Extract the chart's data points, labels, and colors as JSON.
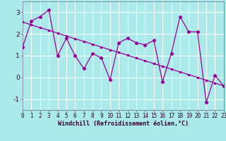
{
  "xlabel": "Windchill (Refroidissement éolien,°C)",
  "x": [
    0,
    1,
    2,
    3,
    4,
    5,
    6,
    7,
    8,
    9,
    10,
    11,
    12,
    13,
    14,
    15,
    16,
    17,
    18,
    19,
    20,
    21,
    22,
    23
  ],
  "y_data": [
    1.4,
    2.6,
    2.8,
    3.1,
    1.0,
    1.8,
    1.0,
    0.4,
    1.1,
    0.9,
    -0.1,
    1.6,
    1.8,
    1.6,
    1.5,
    1.7,
    -0.2,
    1.1,
    2.8,
    2.1,
    2.1,
    -1.15,
    0.1,
    -0.4
  ],
  "y_trend": [
    2.55,
    2.42,
    2.29,
    2.17,
    2.04,
    1.91,
    1.78,
    1.66,
    1.53,
    1.4,
    1.27,
    1.15,
    1.02,
    0.89,
    0.76,
    0.64,
    0.51,
    0.38,
    0.25,
    0.13,
    0.0,
    -0.13,
    -0.26,
    -0.39
  ],
  "line_color": "#990099",
  "bg_color": "#aaeaea",
  "grid_color": "#ccffff",
  "ylim": [
    -1.5,
    3.5
  ],
  "xlim": [
    0,
    23
  ],
  "yticks": [
    -1,
    0,
    1,
    2,
    3
  ],
  "xticks": [
    0,
    1,
    2,
    3,
    4,
    5,
    6,
    7,
    8,
    9,
    10,
    11,
    12,
    13,
    14,
    15,
    16,
    17,
    18,
    19,
    20,
    21,
    22,
    23
  ],
  "xlabel_fontsize": 6.0,
  "tick_fontsize": 5.5,
  "ylabel_fontsize": 6.5
}
